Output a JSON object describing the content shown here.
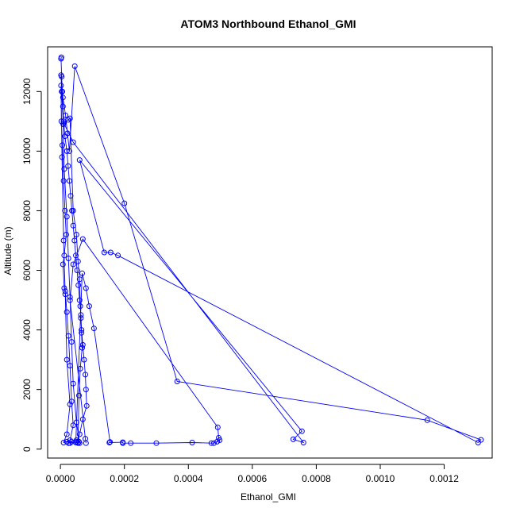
{
  "chart_data": {
    "type": "line",
    "title": "ATOM3 Northbound Ethanol_GMI",
    "xlabel": "Ethanol_GMI",
    "ylabel": "Altitude (m)",
    "xlim": [
      -4e-05,
      0.00135
    ],
    "ylim": [
      -300,
      13500
    ],
    "x_ticks": [
      0.0,
      0.0002,
      0.0004,
      0.0006,
      0.0008,
      0.001,
      0.0012
    ],
    "x_tick_labels": [
      "0.0000",
      "0.0002",
      "0.0004",
      "0.0006",
      "0.0008",
      "0.0010",
      "0.0012"
    ],
    "y_ticks": [
      0,
      2000,
      4000,
      6000,
      8000,
      10000,
      12000
    ],
    "y_tick_labels": [
      "0",
      "2000",
      "4000",
      "6000",
      "8000",
      "10000",
      "12000"
    ],
    "grid": false,
    "series_color": "#0000ff",
    "marker": "open-circle",
    "series": [
      {
        "name": "",
        "points": [
          [
            3e-06,
            13150
          ],
          [
            2e-06,
            13100
          ],
          [
            4e-06,
            12500
          ],
          [
            6e-06,
            12000
          ],
          [
            8e-06,
            11500
          ],
          [
            1e-05,
            11000
          ],
          [
            1.4e-05,
            10500
          ],
          [
            2e-05,
            10000
          ],
          [
            2.4e-05,
            9500
          ],
          [
            2.8e-05,
            9000
          ],
          [
            3.2e-05,
            8500
          ],
          [
            3.6e-05,
            8000
          ],
          [
            4e-05,
            7500
          ],
          [
            4.4e-05,
            7000
          ],
          [
            4.8e-05,
            6500
          ],
          [
            5.2e-05,
            6000
          ],
          [
            5.6e-05,
            5500
          ],
          [
            6e-05,
            5000
          ],
          [
            6.4e-05,
            4500
          ],
          [
            6.6e-05,
            4000
          ],
          [
            7e-05,
            3500
          ],
          [
            7.4e-05,
            3000
          ],
          [
            7.8e-05,
            2500
          ],
          [
            8e-05,
            2000
          ],
          [
            8.2e-05,
            1450
          ],
          [
            7e-05,
            1000
          ],
          [
            6e-05,
            500
          ],
          [
            5e-05,
            250
          ],
          [
            3e-05,
            200
          ],
          [
            2e-05,
            250
          ],
          [
            1e-05,
            220
          ],
          [
            2e-05,
            500
          ],
          [
            3e-05,
            1500
          ],
          [
            2e-05,
            3000
          ],
          [
            1.5e-05,
            5200
          ],
          [
            1e-05,
            7000
          ],
          [
            5e-06,
            9800
          ],
          [
            2e-06,
            12200
          ],
          [
            3e-06,
            11000
          ],
          [
            6e-06,
            10200
          ],
          [
            1e-05,
            9000
          ],
          [
            1.4e-05,
            8000
          ],
          [
            1.8e-05,
            7200
          ],
          [
            1.2e-05,
            6500
          ],
          [
            8e-06,
            6200
          ],
          [
            1.2e-05,
            5400
          ],
          [
            1.5e-05,
            5300
          ],
          [
            2e-05,
            4600
          ],
          [
            2.5e-05,
            3800
          ],
          [
            3e-05,
            2800
          ],
          [
            3.5e-05,
            1600
          ],
          [
            4e-05,
            800
          ],
          [
            3e-05,
            300
          ],
          [
            2.5e-05,
            200
          ],
          [
            3.5e-05,
            250
          ],
          [
            5e-05,
            300
          ],
          [
            5.8e-05,
            250
          ],
          [
            6e-05,
            200
          ],
          [
            5e-05,
            900
          ],
          [
            4e-05,
            2200
          ],
          [
            3.5e-05,
            3600
          ],
          [
            3e-05,
            5100
          ],
          [
            2.5e-05,
            6400
          ],
          [
            2e-05,
            7800
          ],
          [
            1.2e-05,
            9400
          ],
          [
            9e-06,
            10900
          ],
          [
            4e-06,
            12000
          ],
          [
            2e-06,
            12550
          ],
          [
            8e-06,
            11800
          ],
          [
            1.6e-05,
            11200
          ],
          [
            2.2e-05,
            10600
          ],
          [
            2.8e-05,
            10000
          ],
          [
            4.5e-05,
            12850
          ],
          [
            0.0002,
            8250
          ],
          [
            0.000365,
            2270
          ],
          [
            0.001147,
            970
          ],
          [
            0.001315,
            310
          ],
          [
            0.001306,
            220
          ],
          [
            0.00018,
            6500
          ],
          [
            0.000157,
            6600
          ],
          [
            0.000137,
            6600
          ],
          [
            6e-05,
            9700
          ],
          [
            0.000755,
            600
          ],
          [
            0.000728,
            330
          ],
          [
            0.00076,
            220
          ],
          [
            4e-05,
            10300
          ],
          [
            1e-05,
            10950
          ],
          [
            2.4e-05,
            11050
          ],
          [
            3e-05,
            11100
          ],
          [
            4e-05,
            8000
          ],
          [
            5e-05,
            7200
          ],
          [
            5.5e-05,
            6300
          ],
          [
            6e-05,
            5700
          ],
          [
            6.2e-05,
            4800
          ],
          [
            6.4e-05,
            4400
          ],
          [
            6.6e-05,
            3900
          ],
          [
            6.8e-05,
            3400
          ],
          [
            6.2e-05,
            2700
          ],
          [
            5.8e-05,
            1800
          ],
          [
            5.5e-05,
            200
          ],
          [
            4.8e-05,
            220
          ],
          [
            6.8e-05,
            5900
          ],
          [
            8e-05,
            5400
          ],
          [
            9e-05,
            4800
          ],
          [
            0.000105,
            4050
          ],
          [
            0.000155,
            240
          ],
          [
            0.000153,
            220
          ],
          [
            0.000195,
            230
          ],
          [
            0.000195,
            200
          ],
          [
            0.00022,
            200
          ],
          [
            0.0003,
            200
          ],
          [
            0.000412,
            220
          ],
          [
            0.000472,
            200
          ],
          [
            0.00048,
            200
          ],
          [
            0.00049,
            250
          ],
          [
            0.000498,
            300
          ],
          [
            0.000495,
            380
          ],
          [
            0.000492,
            730
          ],
          [
            7e-05,
            7050
          ],
          [
            4e-05,
            6200
          ],
          [
            3e-05,
            5000
          ],
          [
            7.8e-05,
            350
          ],
          [
            8e-05,
            200
          ]
        ]
      }
    ]
  }
}
